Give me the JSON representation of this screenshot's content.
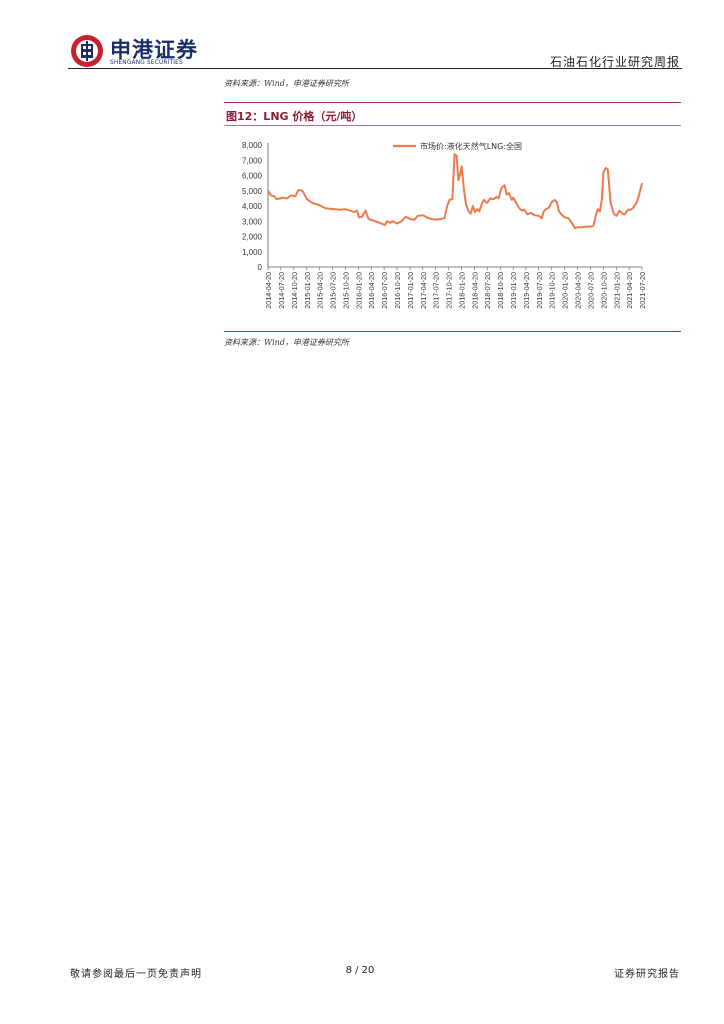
{
  "header": {
    "logo_cn": "申港证券",
    "logo_en": "SHENGANG SECURITIES",
    "report_type": "石油石化行业研究周报"
  },
  "top_source": "资料来源：Wind，申港证券研究所",
  "figure": {
    "title": "图12：LNG 价格（元/吨）",
    "source": "资料来源：Wind，申港证券研究所"
  },
  "chart_data": {
    "type": "line",
    "title": "",
    "xlabel": "",
    "ylabel": "",
    "ylim": [
      0,
      8000
    ],
    "yticks": [
      "8,000",
      "7,000",
      "6,000",
      "5,000",
      "4,000",
      "3,000",
      "2,000",
      "1,000",
      "0"
    ],
    "ytick_values": [
      8000,
      7000,
      6000,
      5000,
      4000,
      3000,
      2000,
      1000,
      0
    ],
    "xticks": [
      "2014-04-20",
      "2014-07-20",
      "2014-10-20",
      "2015-01-20",
      "2015-04-20",
      "2015-07-20",
      "2015-10-20",
      "2016-01-20",
      "2016-04-20",
      "2016-07-20",
      "2016-10-20",
      "2017-01-20",
      "2017-04-20",
      "2017-07-20",
      "2017-10-20",
      "2018-01-20",
      "2018-04-20",
      "2018-07-20",
      "2018-10-20",
      "2019-01-20",
      "2019-04-20",
      "2019-07-20",
      "2019-10-20",
      "2020-01-20",
      "2020-04-20",
      "2020-07-20",
      "2020-10-20",
      "2021-01-20",
      "2021-04-20",
      "2021-07-20"
    ],
    "legend_position": "top-center",
    "grid": false,
    "series": [
      {
        "name": "市场价:液化天然气LNG:全国",
        "color": "#f07a4e",
        "points": [
          [
            "2014-04-20",
            5000
          ],
          [
            "2014-05-10",
            4700
          ],
          [
            "2014-06-01",
            4650
          ],
          [
            "2014-06-20",
            4450
          ],
          [
            "2014-08-01",
            4550
          ],
          [
            "2014-09-01",
            4500
          ],
          [
            "2014-10-01",
            4700
          ],
          [
            "2014-11-01",
            4650
          ],
          [
            "2014-11-20",
            5050
          ],
          [
            "2014-12-20",
            5000
          ],
          [
            "2015-01-20",
            4450
          ],
          [
            "2015-03-01",
            4200
          ],
          [
            "2015-04-20",
            4050
          ],
          [
            "2015-06-01",
            3850
          ],
          [
            "2015-08-01",
            3800
          ],
          [
            "2015-09-15",
            3750
          ],
          [
            "2015-10-20",
            3800
          ],
          [
            "2015-11-20",
            3700
          ],
          [
            "2015-12-20",
            3600
          ],
          [
            "2016-01-10",
            3700
          ],
          [
            "2016-01-25",
            3250
          ],
          [
            "2016-02-15",
            3300
          ],
          [
            "2016-03-10",
            3700
          ],
          [
            "2016-04-01",
            3150
          ],
          [
            "2016-05-01",
            3050
          ],
          [
            "2016-06-01",
            2950
          ],
          [
            "2016-07-01",
            2850
          ],
          [
            "2016-07-25",
            2750
          ],
          [
            "2016-08-10",
            3000
          ],
          [
            "2016-09-01",
            2900
          ],
          [
            "2016-09-20",
            3000
          ],
          [
            "2016-10-20",
            2850
          ],
          [
            "2016-11-20",
            3000
          ],
          [
            "2016-12-20",
            3300
          ],
          [
            "2017-01-20",
            3150
          ],
          [
            "2017-02-20",
            3100
          ],
          [
            "2017-03-15",
            3350
          ],
          [
            "2017-04-20",
            3400
          ],
          [
            "2017-05-20",
            3250
          ],
          [
            "2017-06-20",
            3150
          ],
          [
            "2017-07-20",
            3100
          ],
          [
            "2017-08-20",
            3150
          ],
          [
            "2017-09-20",
            3200
          ],
          [
            "2017-10-10",
            4000
          ],
          [
            "2017-10-25",
            4400
          ],
          [
            "2017-11-15",
            4450
          ],
          [
            "2017-12-01",
            7400
          ],
          [
            "2017-12-15",
            7300
          ],
          [
            "2017-12-28",
            5700
          ],
          [
            "2018-01-10",
            6100
          ],
          [
            "2018-01-20",
            6600
          ],
          [
            "2018-02-05",
            5100
          ],
          [
            "2018-02-20",
            4100
          ],
          [
            "2018-03-10",
            3650
          ],
          [
            "2018-03-25",
            3500
          ],
          [
            "2018-04-10",
            4000
          ],
          [
            "2018-04-25",
            3600
          ],
          [
            "2018-05-10",
            3800
          ],
          [
            "2018-05-25",
            3650
          ],
          [
            "2018-06-10",
            4100
          ],
          [
            "2018-06-25",
            4400
          ],
          [
            "2018-07-20",
            4200
          ],
          [
            "2018-08-10",
            4500
          ],
          [
            "2018-09-01",
            4450
          ],
          [
            "2018-09-25",
            4600
          ],
          [
            "2018-10-10",
            4500
          ],
          [
            "2018-10-25",
            5100
          ],
          [
            "2018-11-10",
            5300
          ],
          [
            "2018-11-20",
            5350
          ],
          [
            "2018-12-05",
            4750
          ],
          [
            "2018-12-20",
            4850
          ],
          [
            "2019-01-10",
            4400
          ],
          [
            "2019-01-20",
            4550
          ],
          [
            "2019-02-10",
            4200
          ],
          [
            "2019-03-01",
            3900
          ],
          [
            "2019-03-20",
            3700
          ],
          [
            "2019-04-10",
            3750
          ],
          [
            "2019-05-01",
            3450
          ],
          [
            "2019-05-25",
            3550
          ],
          [
            "2019-06-20",
            3400
          ],
          [
            "2019-07-20",
            3350
          ],
          [
            "2019-08-10",
            3200
          ],
          [
            "2019-08-25",
            3650
          ],
          [
            "2019-09-10",
            3800
          ],
          [
            "2019-10-01",
            3900
          ],
          [
            "2019-10-20",
            4250
          ],
          [
            "2019-11-10",
            4400
          ],
          [
            "2019-11-25",
            4250
          ],
          [
            "2019-12-10",
            3650
          ],
          [
            "2020-01-01",
            3400
          ],
          [
            "2020-01-20",
            3250
          ],
          [
            "2020-02-15",
            3200
          ],
          [
            "2020-03-10",
            2900
          ],
          [
            "2020-04-01",
            2550
          ],
          [
            "2020-04-20",
            2600
          ],
          [
            "2020-05-20",
            2600
          ],
          [
            "2020-06-20",
            2650
          ],
          [
            "2020-07-20",
            2650
          ],
          [
            "2020-08-10",
            2700
          ],
          [
            "2020-08-25",
            3300
          ],
          [
            "2020-09-10",
            3800
          ],
          [
            "2020-09-25",
            3650
          ],
          [
            "2020-10-10",
            4500
          ],
          [
            "2020-10-20",
            6200
          ],
          [
            "2020-11-05",
            6500
          ],
          [
            "2020-11-20",
            6400
          ],
          [
            "2020-12-10",
            4200
          ],
          [
            "2021-01-01",
            3500
          ],
          [
            "2021-01-20",
            3350
          ],
          [
            "2021-02-10",
            3700
          ],
          [
            "2021-03-01",
            3500
          ],
          [
            "2021-03-20",
            3450
          ],
          [
            "2021-04-10",
            3750
          ],
          [
            "2021-05-01",
            3750
          ],
          [
            "2021-05-20",
            3900
          ],
          [
            "2021-06-10",
            4200
          ],
          [
            "2021-06-25",
            4600
          ],
          [
            "2021-07-20",
            5500
          ]
        ]
      }
    ]
  },
  "footer": {
    "disclaimer": "敬请参阅最后一页免责声明",
    "page": "8 / 20",
    "doc_type": "证券研究报告"
  }
}
